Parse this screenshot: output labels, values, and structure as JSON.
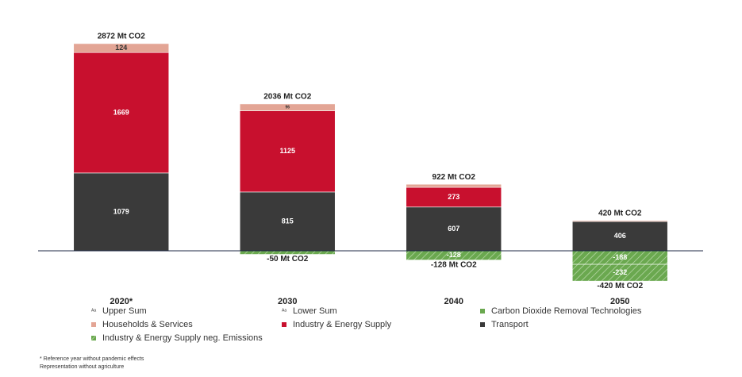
{
  "chart_data": {
    "type": "bar",
    "stacked": true,
    "categories": [
      "2020*",
      "2030",
      "2040",
      "2050"
    ],
    "series": [
      {
        "name": "Transport",
        "color": "#3a3a3a",
        "values": [
          1079,
          815,
          607,
          406
        ]
      },
      {
        "name": "Industry & Energy Supply",
        "color": "#c8102e",
        "values": [
          1669,
          1125,
          273,
          0
        ]
      },
      {
        "name": "Households & Services",
        "color": "#e3a595",
        "values": [
          124,
          96,
          42,
          14
        ]
      },
      {
        "name": "Industry & Energy Supply neg. Emissions",
        "color": "#6aa84f",
        "values": [
          0,
          -50,
          -128,
          -188
        ]
      },
      {
        "name": "Carbon Dioxide Removal Technologies",
        "color": "#6aa84f",
        "values": [
          0,
          0,
          0,
          -232
        ]
      }
    ],
    "upper_sum": {
      "name": "Upper Sum",
      "values": [
        2872,
        2036,
        922,
        420
      ],
      "value_labels": [
        "2872 Mt CO2",
        "2036 Mt CO2",
        "922 Mt CO2",
        "420 Mt CO2"
      ]
    },
    "lower_sum": {
      "name": "Lower Sum",
      "values": [
        null,
        -50,
        -128,
        -420
      ],
      "value_labels": [
        null,
        "-50 Mt CO2",
        "-128 Mt CO2",
        "-420 Mt CO2"
      ]
    },
    "ylim": [
      -700,
      3000
    ],
    "footnotes": [
      "* Reference year without pandemic effects",
      "Representation without agriculture"
    ]
  }
}
